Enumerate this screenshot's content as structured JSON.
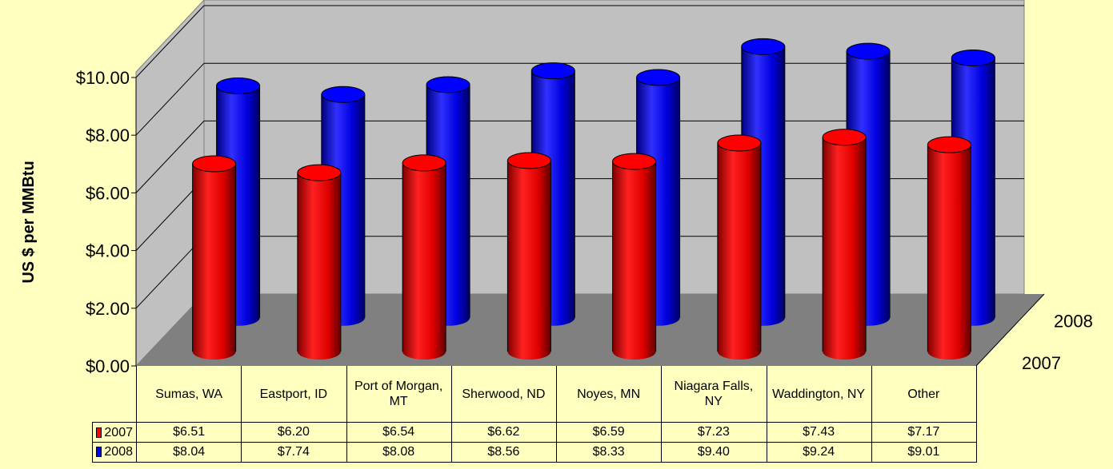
{
  "chart_data": {
    "type": "bar3d",
    "y_label": "US $ per MMBtu",
    "categories": [
      "Sumas, WA",
      "Eastport, ID",
      "Port of Morgan, MT",
      "Sherwood, ND",
      "Noyes, MN",
      "Niagara Falls, NY",
      "Waddington, NY",
      "Other"
    ],
    "series": [
      {
        "name": "2007",
        "color": "#ff0000",
        "values": [
          6.51,
          6.2,
          6.54,
          6.62,
          6.59,
          7.23,
          7.43,
          7.17
        ],
        "value_labels": [
          "$6.51",
          "$6.20",
          "$6.54",
          "$6.62",
          "$6.59",
          "$7.23",
          "$7.43",
          "$7.17"
        ]
      },
      {
        "name": "2008",
        "color": "#0000ff",
        "values": [
          8.04,
          7.74,
          8.08,
          8.56,
          8.33,
          9.4,
          9.24,
          9.01
        ],
        "value_labels": [
          "$8.04",
          "$7.74",
          "$8.08",
          "$8.56",
          "$8.33",
          "$9.40",
          "$9.24",
          "$9.01"
        ]
      }
    ],
    "ylim": [
      0,
      10
    ],
    "yticks": [
      {
        "value": 0,
        "label": "$0.00"
      },
      {
        "value": 2,
        "label": "$2.00"
      },
      {
        "value": 4,
        "label": "$4.00"
      },
      {
        "value": 6,
        "label": "$6.00"
      },
      {
        "value": 8,
        "label": "$8.00"
      },
      {
        "value": 10,
        "label": "$10.00"
      }
    ],
    "grid": true
  }
}
